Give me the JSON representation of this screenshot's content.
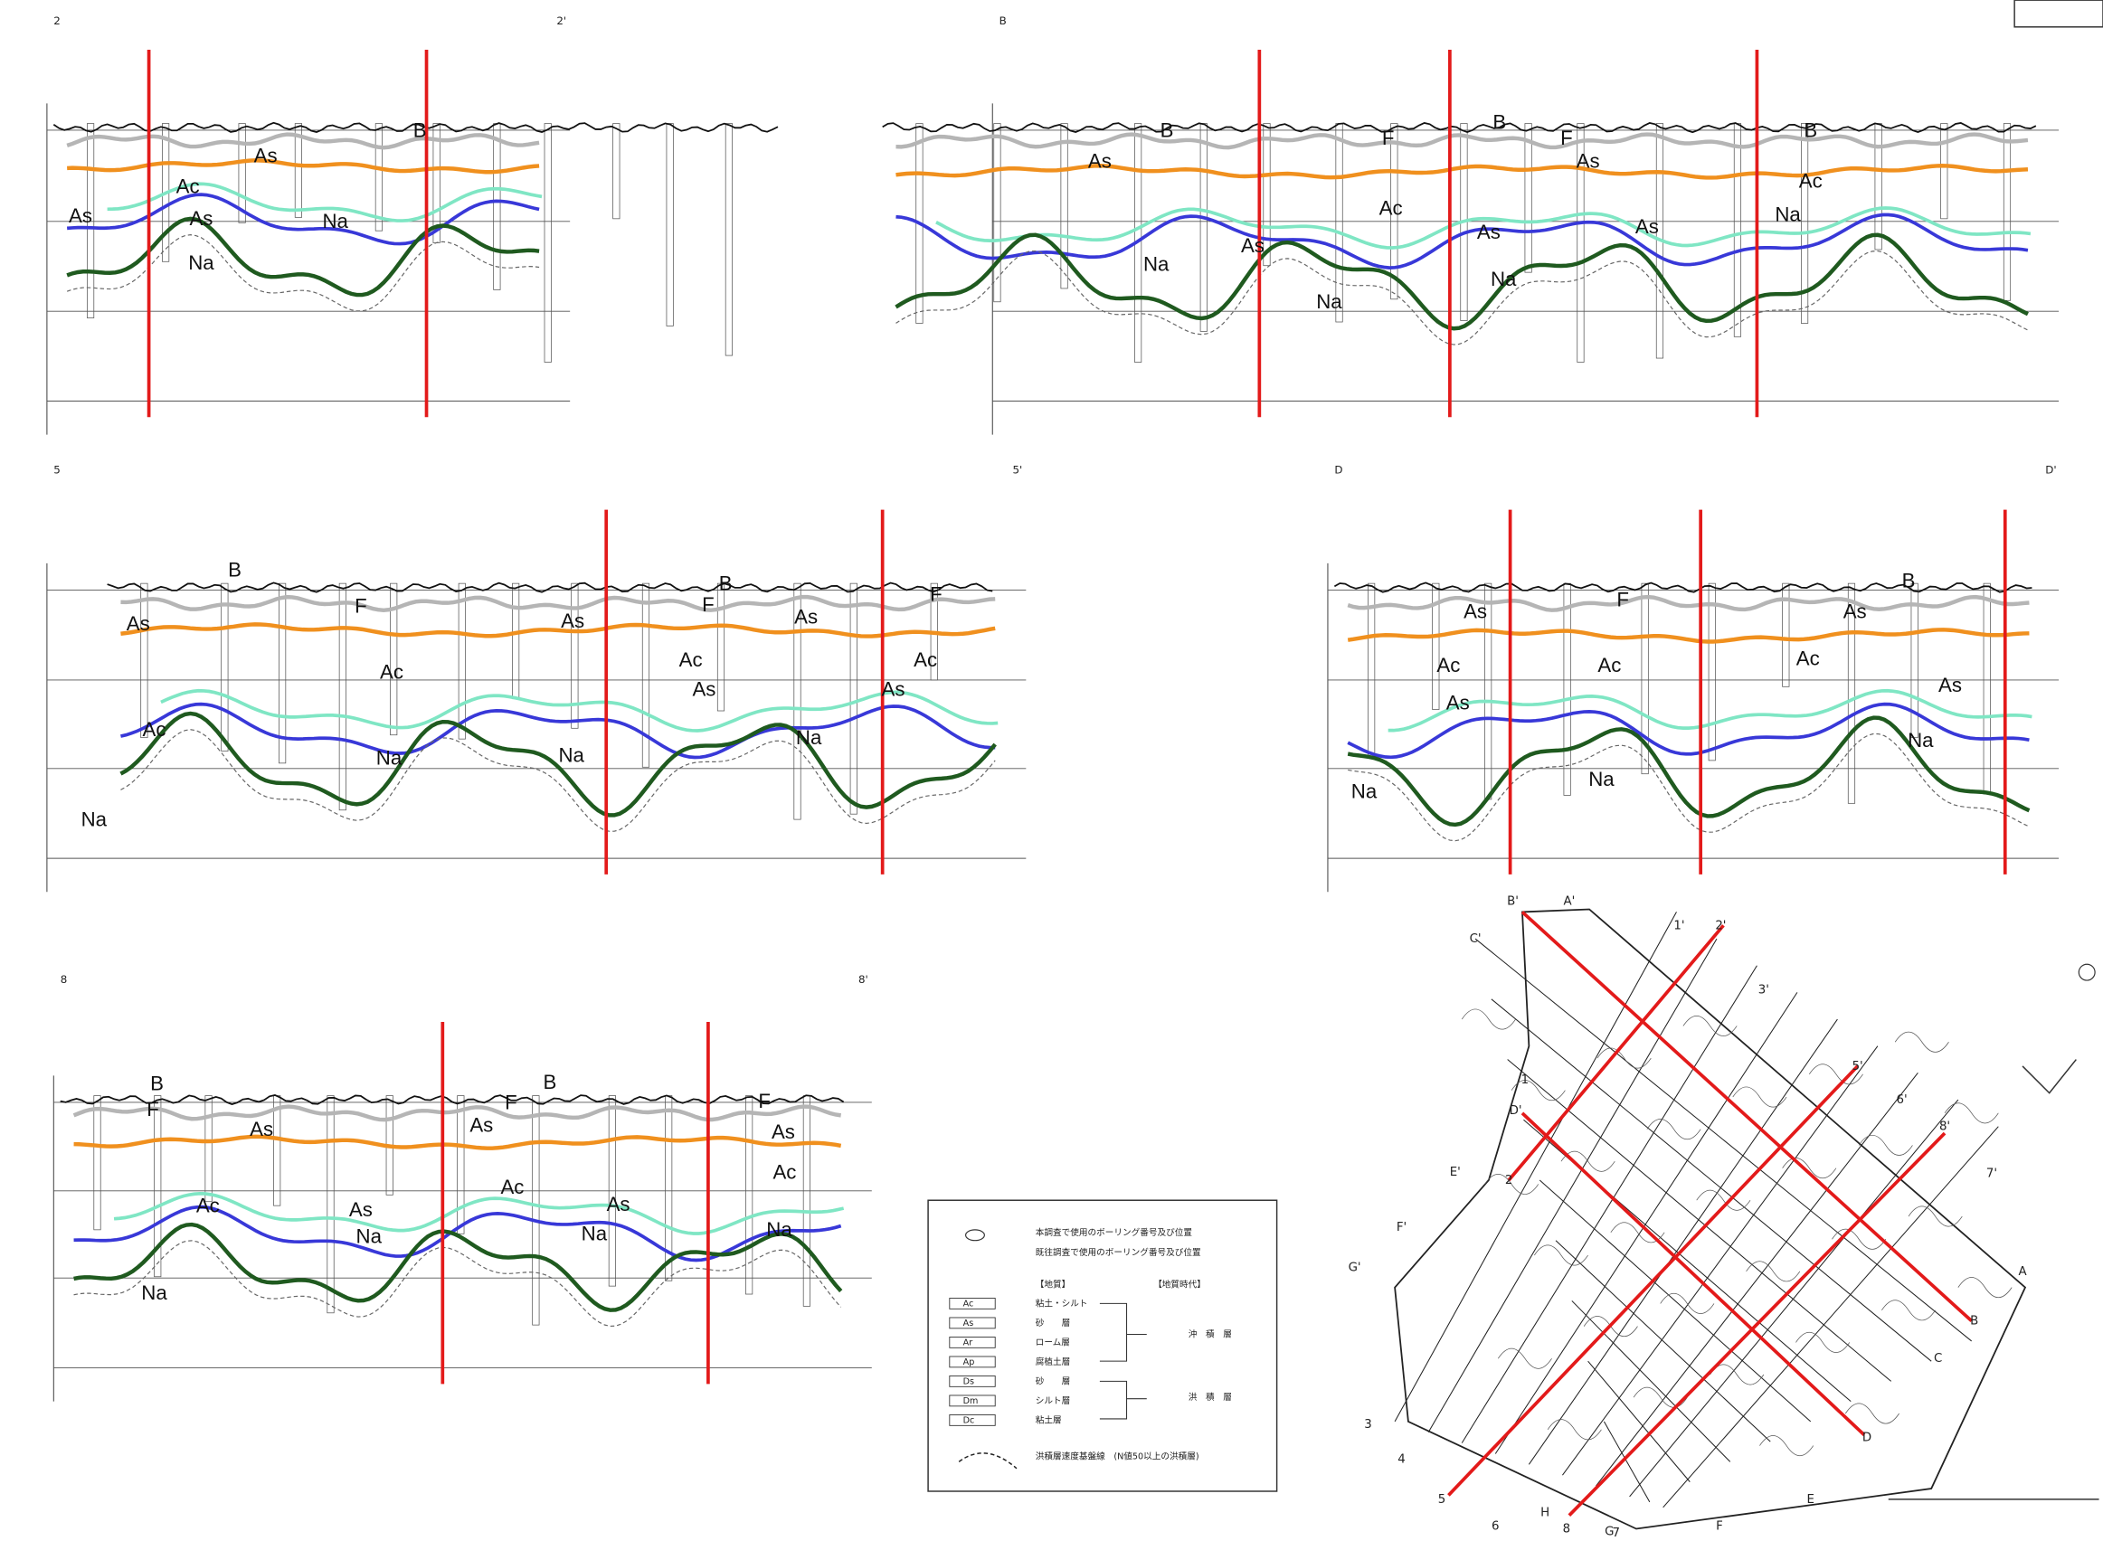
{
  "panels": [
    {
      "start_label": "2",
      "end_label": "2'",
      "layer_labels": [
        "As",
        "Ac",
        "As",
        "As",
        "Na",
        "Na",
        "B"
      ]
    },
    {
      "start_label": "B",
      "end_label": "",
      "layer_labels": [
        "B",
        "B",
        "B",
        "F",
        "F",
        "As",
        "As",
        "Ac",
        "Ac",
        "Na",
        "As",
        "As",
        "As",
        "Na",
        "Na",
        "Na"
      ]
    },
    {
      "start_label": "5",
      "end_label": "5'",
      "layer_labels": [
        "B",
        "B",
        "F",
        "F",
        "F",
        "As",
        "As",
        "As",
        "Ac",
        "Ac",
        "Ac",
        "As",
        "As",
        "Ac",
        "Na",
        "Na",
        "Na",
        "Na"
      ]
    },
    {
      "start_label": "D",
      "end_label": "D'",
      "layer_labels": [
        "B",
        "F",
        "As",
        "As",
        "Ac",
        "Ac",
        "Ac",
        "As",
        "As",
        "Na",
        "Na",
        "Na"
      ]
    },
    {
      "start_label": "8",
      "end_label": "8'",
      "layer_labels": [
        "B",
        "B",
        "F",
        "F",
        "F",
        "As",
        "As",
        "As",
        "Ac",
        "Ac",
        "Ac",
        "As",
        "As",
        "Na",
        "Na",
        "Na",
        "Na"
      ]
    }
  ],
  "legend": {
    "boring_new": "本調査で使用のボーリング番号及び位置",
    "boring_old": "既往調査で使用のボーリング番号及び位置",
    "geology_header": "【地質】",
    "era_header": "【地質時代】",
    "items": [
      {
        "code": "Ac",
        "name": "粘土・シルト"
      },
      {
        "code": "As",
        "name": "砂　　層"
      },
      {
        "code": "Ar",
        "name": "ローム層"
      },
      {
        "code": "Ap",
        "name": "腐植土層"
      },
      {
        "code": "Ds",
        "name": "砂　　層"
      },
      {
        "code": "Dm",
        "name": "シルト層"
      },
      {
        "code": "Dc",
        "name": "粘土層"
      }
    ],
    "era_alluvial": "沖　積　層",
    "era_diluvial": "洪　積　層",
    "base_line": "洪積層速度基盤線　(N値50以上の洪積層)"
  },
  "map": {
    "labels": [
      "A",
      "A'",
      "B",
      "B'",
      "C",
      "C'",
      "D",
      "D'",
      "E",
      "E'",
      "F",
      "F'",
      "G",
      "G'",
      "H",
      "1",
      "1'",
      "2",
      "2'",
      "3",
      "3'",
      "4",
      "5",
      "5'",
      "6",
      "6'",
      "7",
      "7'",
      "8",
      "8'"
    ]
  }
}
